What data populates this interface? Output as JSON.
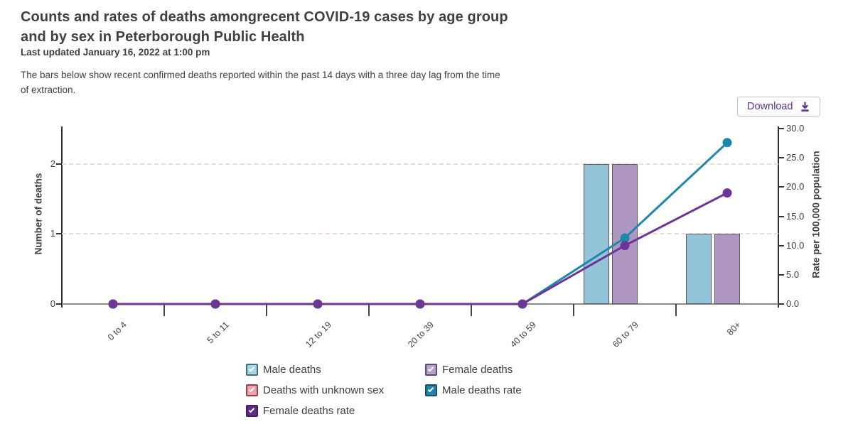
{
  "header": {
    "title_line1": "Counts and rates of deaths amongrecent COVID-19 cases by age group",
    "title_line2": "and by sex in Peterborough Public Health",
    "last_updated": "Last updated January 16, 2022 at 1:00 pm",
    "description_line1": "The bars below show recent confirmed deaths reported within the past 14 days with a three day lag from the time",
    "description_line2": "of extraction."
  },
  "toolbar": {
    "download_label": "Download",
    "accent_color": "#5e3192"
  },
  "chart_data": {
    "type": "bar",
    "subtype": "grouped bars with dual-axis rate lines",
    "categories": [
      "0 to 4",
      "5 to 11",
      "12 to 19",
      "20 to 39",
      "40 to 59",
      "60 to 79",
      "80+"
    ],
    "bar_series": [
      {
        "name": "Male deaths",
        "axis": "left",
        "values": [
          0,
          0,
          0,
          0,
          0,
          2,
          1
        ],
        "fill": "#93c4d8",
        "border": "#5a5a64"
      },
      {
        "name": "Female deaths",
        "axis": "left",
        "values": [
          0,
          0,
          0,
          0,
          0,
          2,
          1
        ],
        "fill": "#ae97c1",
        "border": "#5a5a64"
      },
      {
        "name": "Deaths with unknown sex",
        "axis": "left",
        "values": [
          0,
          0,
          0,
          0,
          0,
          0,
          0
        ],
        "fill": "#f1a2ad",
        "border": "#5a5a64"
      }
    ],
    "line_series": [
      {
        "name": "Male deaths rate",
        "axis": "right",
        "values": [
          0,
          0,
          0,
          0,
          0,
          11.3,
          27.6
        ],
        "color": "#1e87ac"
      },
      {
        "name": "Female deaths rate",
        "axis": "right",
        "values": [
          0,
          0,
          0,
          0,
          0,
          10.0,
          19.0
        ],
        "color": "#6e3598"
      }
    ],
    "left_axis": {
      "label": "Number of deaths",
      "ticks": [
        "0",
        "1",
        "2"
      ],
      "range": [
        0,
        2.5
      ]
    },
    "right_axis": {
      "label": "Rate per 100,000 population",
      "ticks": [
        "0.0",
        "5.0",
        "10.0",
        "15.0",
        "20.0",
        "25.0",
        "30.0"
      ],
      "range": [
        0,
        30
      ]
    },
    "gridlines": {
      "left_values": [
        1,
        2
      ],
      "color": "#f0d9cf",
      "style": "dashed"
    },
    "legend": {
      "position": "bottom",
      "items": [
        {
          "label": "Male deaths",
          "fill": "#a9d5e2",
          "border": "#456a7a"
        },
        {
          "label": "Deaths with unknown sex",
          "fill": "#f1a2ad",
          "border": "#96414f"
        },
        {
          "label": "Female deaths rate",
          "fill": "#5d2c84",
          "border": "#41205e"
        },
        {
          "label": "Female deaths",
          "fill": "#b4a2c7",
          "border": "#5a4a70"
        },
        {
          "label": "Male deaths rate",
          "fill": "#1e86ab",
          "border": "#174f63"
        }
      ]
    }
  }
}
